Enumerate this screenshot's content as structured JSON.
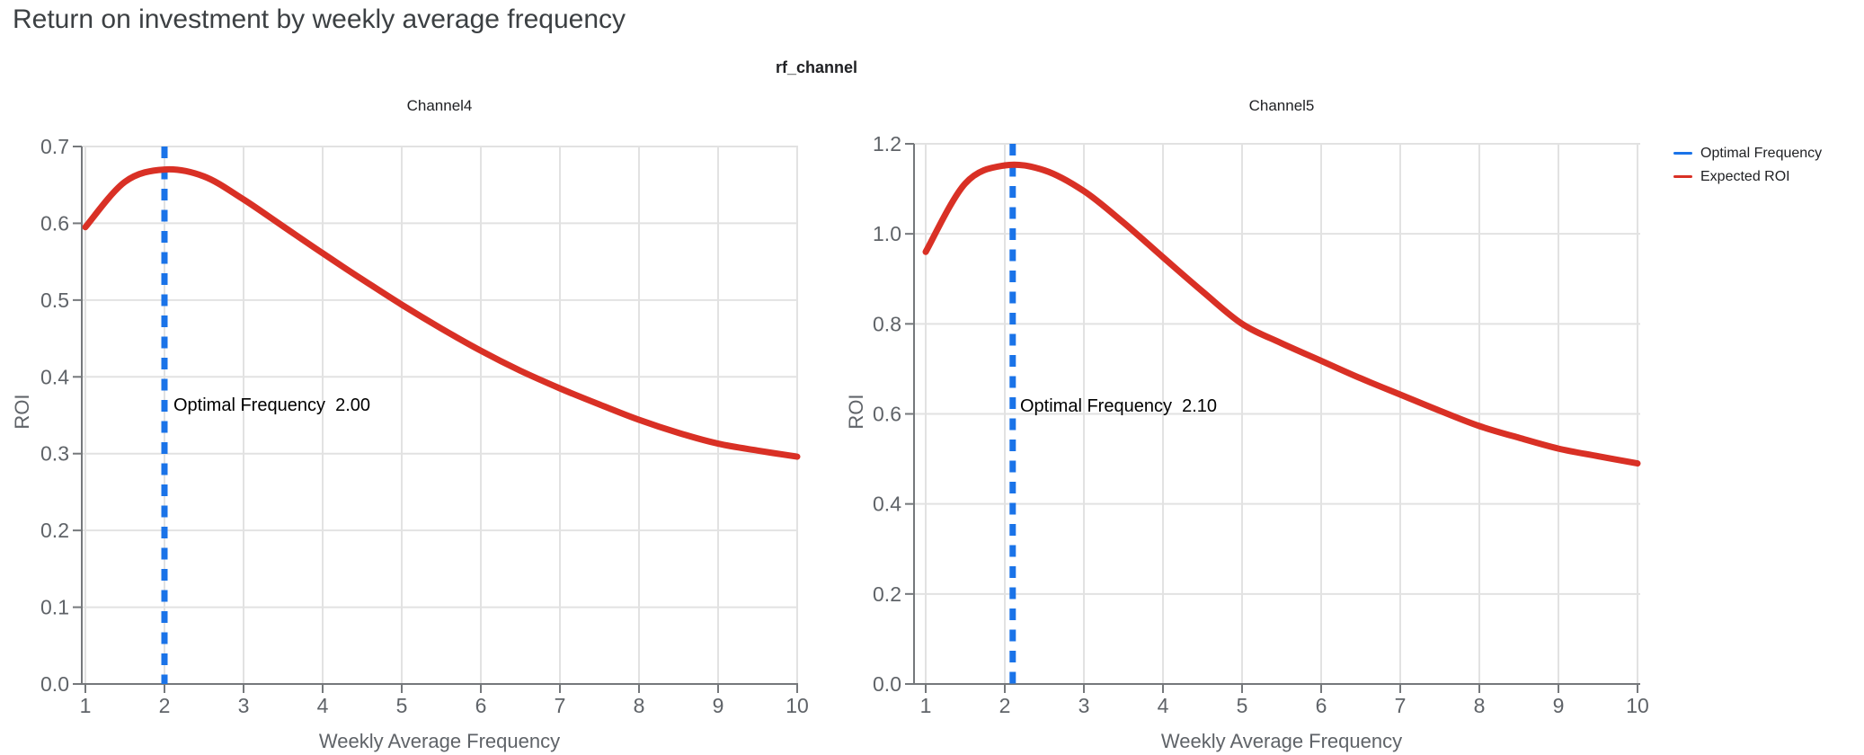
{
  "page_title": "Return on investment by weekly average frequency",
  "figure_title": "rf_channel",
  "colors": {
    "optimal_frequency_line": "#1a73e8",
    "expected_roi_line": "#d93025",
    "gridline": "#e2e2e2",
    "axis_spine": "#75787b",
    "tick_label": "#5f6368"
  },
  "legend": {
    "position": "top-right",
    "items": [
      {
        "label": "Optimal Frequency",
        "color": "#1a73e8"
      },
      {
        "label": "Expected ROI",
        "color": "#d93025"
      }
    ]
  },
  "chart_data": [
    {
      "type": "line",
      "title": "Channel4",
      "xlabel": "Weekly Average Frequency",
      "ylabel": "ROI",
      "xlim": [
        1,
        10
      ],
      "ylim": [
        0.0,
        0.7
      ],
      "xticks": [
        1,
        2,
        3,
        4,
        5,
        6,
        7,
        8,
        9,
        10
      ],
      "yticks": [
        0.0,
        0.1,
        0.2,
        0.3,
        0.4,
        0.5,
        0.6,
        0.7
      ],
      "grid": true,
      "optimal_frequency": 2.0,
      "annotation": "Optimal Frequency  2.00",
      "series": [
        {
          "name": "Expected ROI",
          "x": [
            1,
            1.5,
            2,
            2.5,
            3,
            3.5,
            4,
            4.5,
            5,
            5.5,
            6,
            6.5,
            7,
            7.5,
            8,
            8.5,
            9,
            9.5,
            10
          ],
          "y": [
            0.595,
            0.654,
            0.67,
            0.661,
            0.631,
            0.596,
            0.561,
            0.527,
            0.494,
            0.463,
            0.434,
            0.408,
            0.385,
            0.364,
            0.344,
            0.327,
            0.313,
            0.304,
            0.296
          ]
        },
        {
          "name": "Optimal Frequency",
          "x_vertical_line": 2.0
        }
      ]
    },
    {
      "type": "line",
      "title": "Channel5",
      "xlabel": "Weekly Average Frequency",
      "ylabel": "ROI",
      "xlim": [
        1,
        10
      ],
      "ylim": [
        0.0,
        1.2
      ],
      "xticks": [
        1,
        2,
        3,
        4,
        5,
        6,
        7,
        8,
        9,
        10
      ],
      "yticks": [
        0.0,
        0.2,
        0.4,
        0.6,
        0.8,
        1.0,
        1.2
      ],
      "grid": true,
      "optimal_frequency": 2.1,
      "annotation": "Optimal Frequency  2.10",
      "series": [
        {
          "name": "Expected ROI",
          "x": [
            1,
            1.5,
            2,
            2.5,
            3,
            3.5,
            4,
            4.5,
            5,
            5.5,
            6,
            6.5,
            7,
            7.5,
            8,
            8.5,
            9,
            9.5,
            10
          ],
          "y": [
            0.96,
            1.112,
            1.152,
            1.141,
            1.095,
            1.025,
            0.948,
            0.872,
            0.8,
            0.757,
            0.718,
            0.679,
            0.643,
            0.607,
            0.573,
            0.547,
            0.523,
            0.506,
            0.49
          ]
        },
        {
          "name": "Optimal Frequency",
          "x_vertical_line": 2.1
        }
      ]
    }
  ]
}
